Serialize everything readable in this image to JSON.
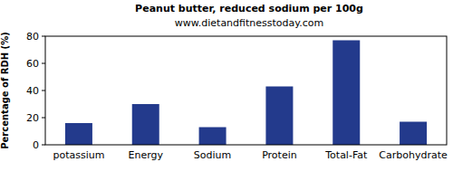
{
  "chart_data": {
    "type": "bar",
    "title": "Peanut butter, reduced sodium per 100g",
    "subtitle": "www.dietandfitnesstoday.com",
    "y_label": "Percentage of RDH (%)",
    "categories": [
      "potassium",
      "Energy",
      "Sodium",
      "Protein",
      "Total-Fat",
      "Carbohydrate"
    ],
    "values": [
      16,
      30,
      13,
      43,
      77,
      17
    ],
    "color": "#233a8c",
    "ylim": [
      0,
      80
    ],
    "yticks": [
      0,
      20,
      40,
      60,
      80
    ],
    "grid": false
  }
}
